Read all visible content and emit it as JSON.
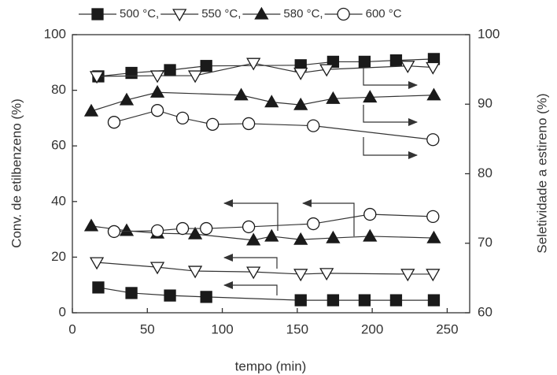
{
  "chart_data": {
    "type": "line",
    "y_label": "Conv. de etilbenzeno (%)",
    "y2_label": "Seletividade a estireno (%)",
    "x_label": "tempo (min)",
    "xlim": [
      0,
      265
    ],
    "xticks": [
      0,
      50,
      100,
      150,
      200,
      250
    ],
    "ylim": [
      0,
      100
    ],
    "yticks": [
      0,
      20,
      40,
      60,
      80,
      100
    ],
    "y2lim": [
      60,
      100
    ],
    "y2ticks": [
      60,
      70,
      80,
      90,
      100
    ],
    "color": "#1a1a1a",
    "series": [
      {
        "name": "500 °C,",
        "marker": "square",
        "filled": true,
        "x": [
          17.3,
          39.4,
          65.1,
          89.3,
          152.3,
          173.9,
          194.9,
          215.9,
          241.1
        ],
        "values": [
          9.1,
          7.1,
          6.2,
          5.7,
          4.5,
          4.5,
          4.5,
          4.5,
          4.5
        ],
        "selectivity": {
          "axis": "y2",
          "x": [
            17.3,
            39.4,
            65.1,
            89.3,
            152.3,
            173.9,
            194.9,
            215.9,
            241.1
          ],
          "values": [
            94.0,
            94.5,
            94.9,
            95.5,
            95.6,
            96.1,
            96.1,
            96.3,
            96.5
          ]
        }
      },
      {
        "name": "550 °C,",
        "marker": "triangle-down",
        "filled": false,
        "x": [
          16.3,
          56.7,
          81.9,
          120.8,
          152.3,
          169.6,
          223.7,
          240.5
        ],
        "values": [
          18.1,
          16.4,
          15.0,
          14.7,
          13.9,
          14.2,
          13.9,
          13.9
        ],
        "selectivity": {
          "axis": "y2",
          "x": [
            16.3,
            56.7,
            81.9,
            120.8,
            152.3,
            169.6,
            223.7,
            240.5
          ],
          "values": [
            94.0,
            94.1,
            94.1,
            95.9,
            94.5,
            95.0,
            95.5,
            95.3
          ]
        }
      },
      {
        "name": "580 °C,",
        "marker": "triangle-up",
        "filled": true,
        "x": [
          12.6,
          36.2,
          56.7,
          81.9,
          120.8,
          132.9,
          152.3,
          173.9,
          198.5,
          241.1
        ],
        "values": [
          31.2,
          29.5,
          28.6,
          28.3,
          26.1,
          27.5,
          26.3,
          26.9,
          27.5,
          26.9
        ],
        "selectivity": {
          "axis": "y2",
          "x": [
            12.6,
            36.2,
            56.7,
            112.6,
            132.9,
            152.3,
            173.9,
            198.5,
            241.1
          ],
          "values": [
            89.0,
            90.6,
            91.7,
            91.3,
            90.3,
            89.9,
            90.8,
            91.0,
            91.3
          ]
        }
      },
      {
        "name": "600 °C",
        "marker": "circle",
        "filled": false,
        "x": [
          27.8,
          56.7,
          73.5,
          89.3,
          117.6,
          160.7,
          198.5,
          240.5
        ],
        "values": [
          29.2,
          29.5,
          30.3,
          30.3,
          30.9,
          32.0,
          35.4,
          34.6
        ],
        "selectivity": {
          "axis": "y2",
          "x": [
            27.8,
            56.7,
            73.5,
            93.5,
            117.6,
            160.7,
            240.5
          ],
          "values": [
            87.4,
            89.1,
            88.0,
            87.1,
            87.2,
            86.9,
            84.9
          ]
        }
      }
    ]
  }
}
